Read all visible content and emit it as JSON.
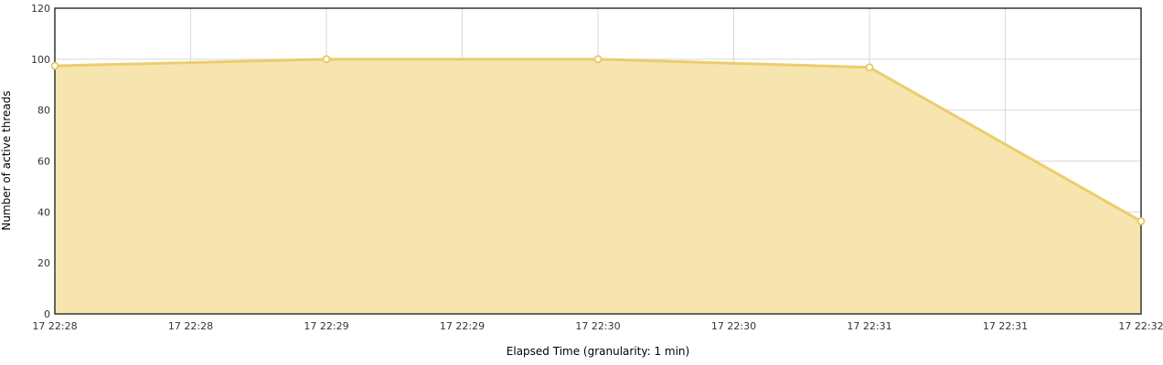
{
  "chart_data": {
    "type": "area",
    "title": "",
    "xlabel": "Elapsed Time (granularity: 1 min)",
    "ylabel": "Number of active threads",
    "x_tick_labels": [
      "17 22:28",
      "17 22:28",
      "17 22:29",
      "17 22:29",
      "17 22:30",
      "17 22:30",
      "17 22:31",
      "17 22:31",
      "17 22:32"
    ],
    "x_range_minutes": [
      0,
      4
    ],
    "ylim": [
      0,
      120
    ],
    "y_ticks": [
      0,
      20,
      40,
      60,
      80,
      100,
      120
    ],
    "grid": true,
    "series": [
      {
        "x": [
          "17 22:28",
          "17 22:29",
          "17 22:30",
          "17 22:31",
          "17 22:32"
        ],
        "values": [
          97.4,
          100,
          100,
          96.8,
          36.4
        ],
        "color": "#e8c85c",
        "fill": "#f7e5b0"
      }
    ]
  }
}
